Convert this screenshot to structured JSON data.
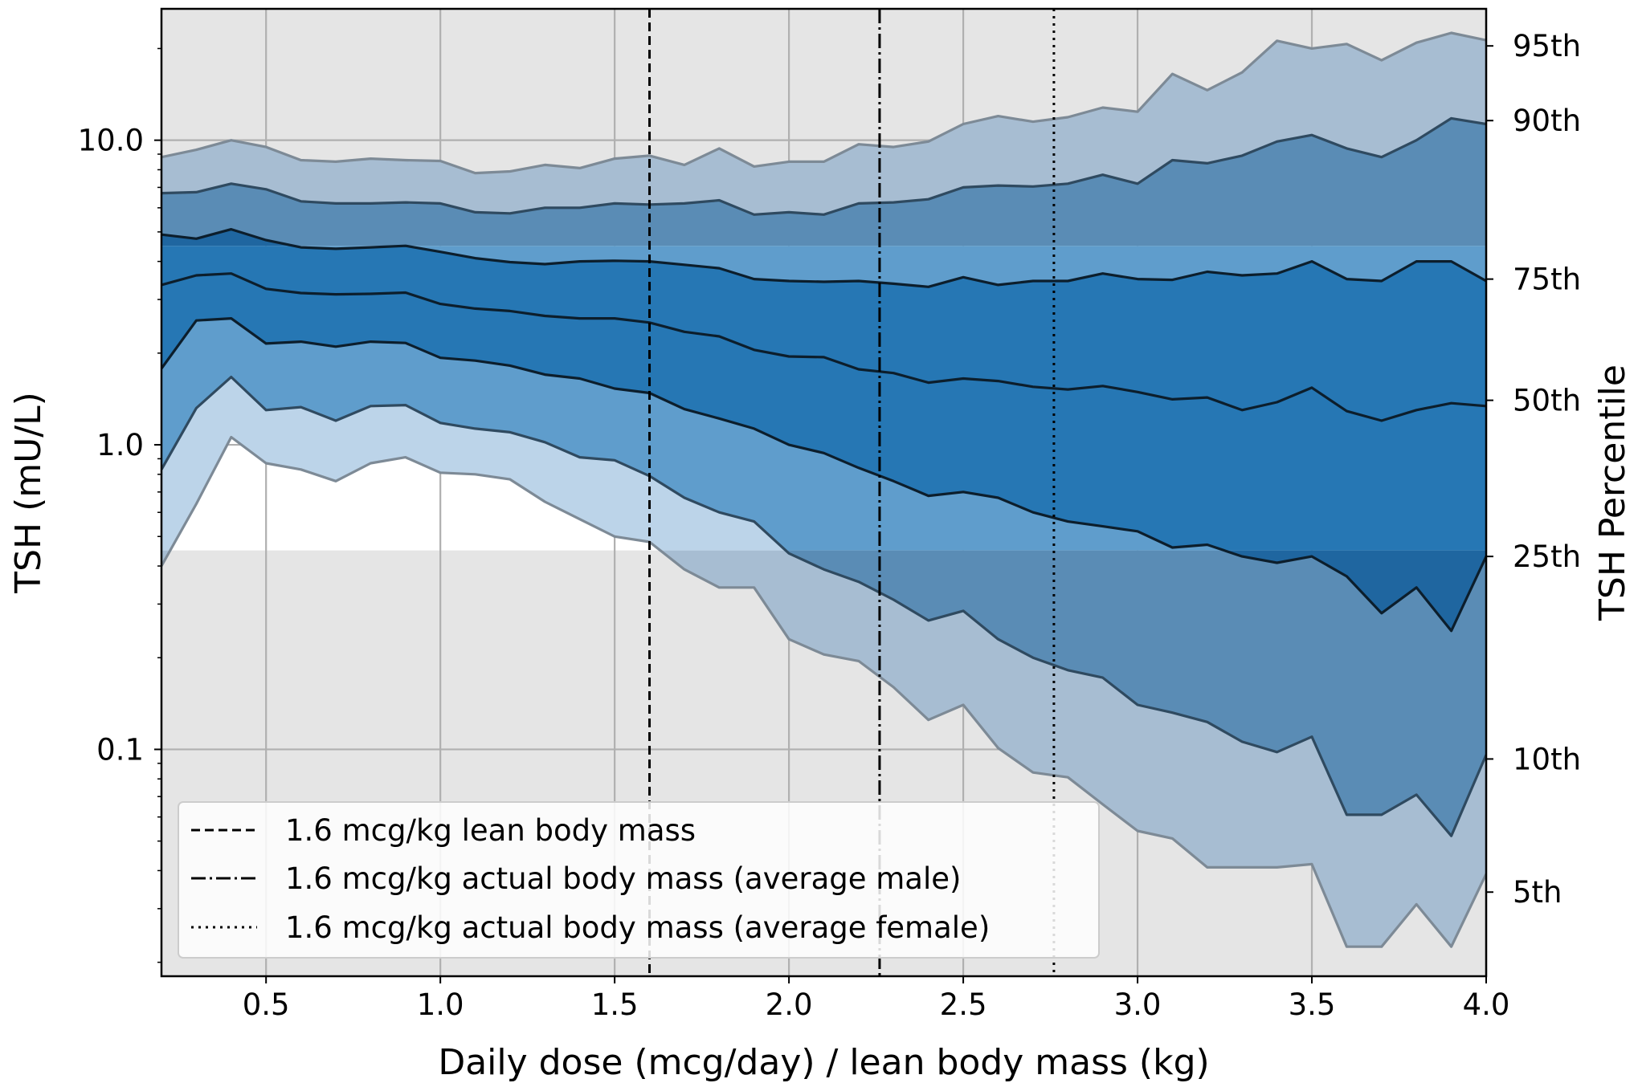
{
  "chart_data": {
    "type": "area",
    "xlabel": "Daily dose (mcg/day) / lean body mass (kg)",
    "ylabel": "TSH (mU/L)",
    "ylabel_right": "TSH Percentile",
    "xlim": [
      0.2,
      4.0
    ],
    "ylim": [
      0.018,
      27
    ],
    "yscale": "log",
    "grid": true,
    "x_ticks": [
      0.5,
      1.0,
      1.5,
      2.0,
      2.5,
      3.0,
      3.5,
      4.0
    ],
    "x_tick_labels": [
      "0.5",
      "1.0",
      "1.5",
      "2.0",
      "2.5",
      "3.0",
      "3.5",
      "4.0"
    ],
    "y_ticks": [
      0.1,
      1.0,
      10.0
    ],
    "y_tick_labels": [
      "0.1",
      "1.0",
      "10.0"
    ],
    "right_ticks": [
      {
        "label": "95th",
        "tsh": 20.4
      },
      {
        "label": "90th",
        "tsh": 11.6
      },
      {
        "label": "75th",
        "tsh": 3.5
      },
      {
        "label": "50th",
        "tsh": 1.4
      },
      {
        "label": "25th",
        "tsh": 0.43
      },
      {
        "label": "10th",
        "tsh": 0.093
      },
      {
        "label": "5th",
        "tsh": 0.034
      }
    ],
    "reference_range": [
      0.45,
      4.5
    ],
    "x": [
      0.2,
      0.3,
      0.4,
      0.5,
      0.6,
      0.7,
      0.8,
      0.9,
      1.0,
      1.1,
      1.2,
      1.3,
      1.4,
      1.5,
      1.6,
      1.7,
      1.8,
      1.9,
      2.0,
      2.1,
      2.2,
      2.3,
      2.4,
      2.5,
      2.6,
      2.7,
      2.8,
      2.9,
      3.0,
      3.1,
      3.2,
      3.3,
      3.4,
      3.5,
      3.6,
      3.7,
      3.8,
      3.9,
      4.0
    ],
    "series": [
      {
        "name": "5th",
        "values": [
          0.4,
          0.64,
          1.06,
          0.87,
          0.83,
          0.76,
          0.87,
          0.91,
          0.81,
          0.8,
          0.77,
          0.65,
          0.57,
          0.5,
          0.48,
          0.39,
          0.34,
          0.34,
          0.23,
          0.205,
          0.195,
          0.16,
          0.125,
          0.14,
          0.101,
          0.084,
          0.081,
          0.066,
          0.054,
          0.051,
          0.041,
          0.041,
          0.041,
          0.042,
          0.0225,
          0.0225,
          0.031,
          0.0225,
          0.039
        ]
      },
      {
        "name": "10th",
        "values": [
          0.83,
          1.32,
          1.67,
          1.3,
          1.33,
          1.2,
          1.34,
          1.35,
          1.18,
          1.13,
          1.1,
          1.02,
          0.91,
          0.89,
          0.79,
          0.67,
          0.6,
          0.56,
          0.44,
          0.39,
          0.355,
          0.31,
          0.265,
          0.285,
          0.23,
          0.2,
          0.182,
          0.172,
          0.14,
          0.132,
          0.123,
          0.106,
          0.098,
          0.11,
          0.061,
          0.061,
          0.071,
          0.052,
          0.096
        ]
      },
      {
        "name": "25th",
        "values": [
          1.78,
          2.56,
          2.6,
          2.15,
          2.18,
          2.1,
          2.18,
          2.16,
          1.93,
          1.89,
          1.82,
          1.7,
          1.65,
          1.53,
          1.48,
          1.31,
          1.22,
          1.13,
          1.0,
          0.94,
          0.84,
          0.76,
          0.68,
          0.7,
          0.67,
          0.6,
          0.56,
          0.54,
          0.52,
          0.46,
          0.47,
          0.43,
          0.41,
          0.43,
          0.37,
          0.28,
          0.34,
          0.245,
          0.43
        ]
      },
      {
        "name": "50th",
        "values": [
          3.35,
          3.6,
          3.65,
          3.25,
          3.15,
          3.12,
          3.13,
          3.16,
          2.9,
          2.8,
          2.75,
          2.65,
          2.6,
          2.6,
          2.52,
          2.35,
          2.27,
          2.05,
          1.95,
          1.94,
          1.77,
          1.72,
          1.6,
          1.65,
          1.62,
          1.55,
          1.52,
          1.56,
          1.49,
          1.41,
          1.43,
          1.3,
          1.38,
          1.54,
          1.29,
          1.2,
          1.3,
          1.37,
          1.34
        ]
      },
      {
        "name": "75th",
        "values": [
          4.9,
          4.75,
          5.1,
          4.7,
          4.45,
          4.4,
          4.45,
          4.5,
          4.3,
          4.1,
          3.98,
          3.92,
          4.0,
          4.02,
          4.0,
          3.9,
          3.8,
          3.5,
          3.45,
          3.43,
          3.45,
          3.38,
          3.3,
          3.55,
          3.35,
          3.45,
          3.45,
          3.65,
          3.5,
          3.48,
          3.7,
          3.6,
          3.65,
          4.0,
          3.5,
          3.45,
          4.0,
          4.0,
          3.45
        ]
      },
      {
        "name": "90th",
        "values": [
          6.7,
          6.75,
          7.2,
          6.9,
          6.3,
          6.2,
          6.2,
          6.25,
          6.2,
          5.8,
          5.75,
          6.0,
          6.0,
          6.2,
          6.15,
          6.2,
          6.35,
          5.7,
          5.8,
          5.7,
          6.2,
          6.25,
          6.4,
          7.0,
          7.1,
          7.05,
          7.2,
          7.7,
          7.2,
          8.6,
          8.4,
          8.9,
          9.9,
          10.4,
          9.4,
          8.8,
          10.0,
          11.8,
          11.3
        ]
      },
      {
        "name": "95th",
        "values": [
          8.8,
          9.3,
          10.0,
          9.5,
          8.6,
          8.5,
          8.7,
          8.6,
          8.55,
          7.8,
          7.9,
          8.3,
          8.1,
          8.7,
          8.9,
          8.3,
          9.4,
          8.2,
          8.5,
          8.5,
          9.7,
          9.5,
          9.9,
          11.3,
          12.0,
          11.5,
          11.9,
          12.8,
          12.4,
          16.5,
          14.6,
          16.7,
          21.2,
          20.0,
          20.7,
          18.3,
          20.9,
          22.5,
          21.3
        ]
      }
    ],
    "vlines": [
      {
        "x": 1.6,
        "style": "dashed",
        "label": "1.6 mcg/kg lean body mass"
      },
      {
        "x": 2.26,
        "style": "dashdot",
        "label": "1.6 mcg/kg actual body mass (average male)"
      },
      {
        "x": 2.76,
        "style": "dotted",
        "label": "1.6 mcg/kg actual body mass (average female)"
      }
    ],
    "legend_position": "lower-left",
    "colors": {
      "background": "#e5e5e5",
      "reference_band": "#ffffff",
      "band_outer": "#a7bdd2",
      "band_mid": "#5a8cb5",
      "band_inner": "#2677b4",
      "band_inner_out_of_range": "#1f66a0",
      "band_mid_in_range": "#5f9dcc",
      "band_outer_in_range": "#bcd4e9",
      "line_outer": "#7d8a96",
      "line_mid": "#2f4a60",
      "line_inner": "#0c1e2c",
      "grid": "#b0b0b0"
    }
  }
}
